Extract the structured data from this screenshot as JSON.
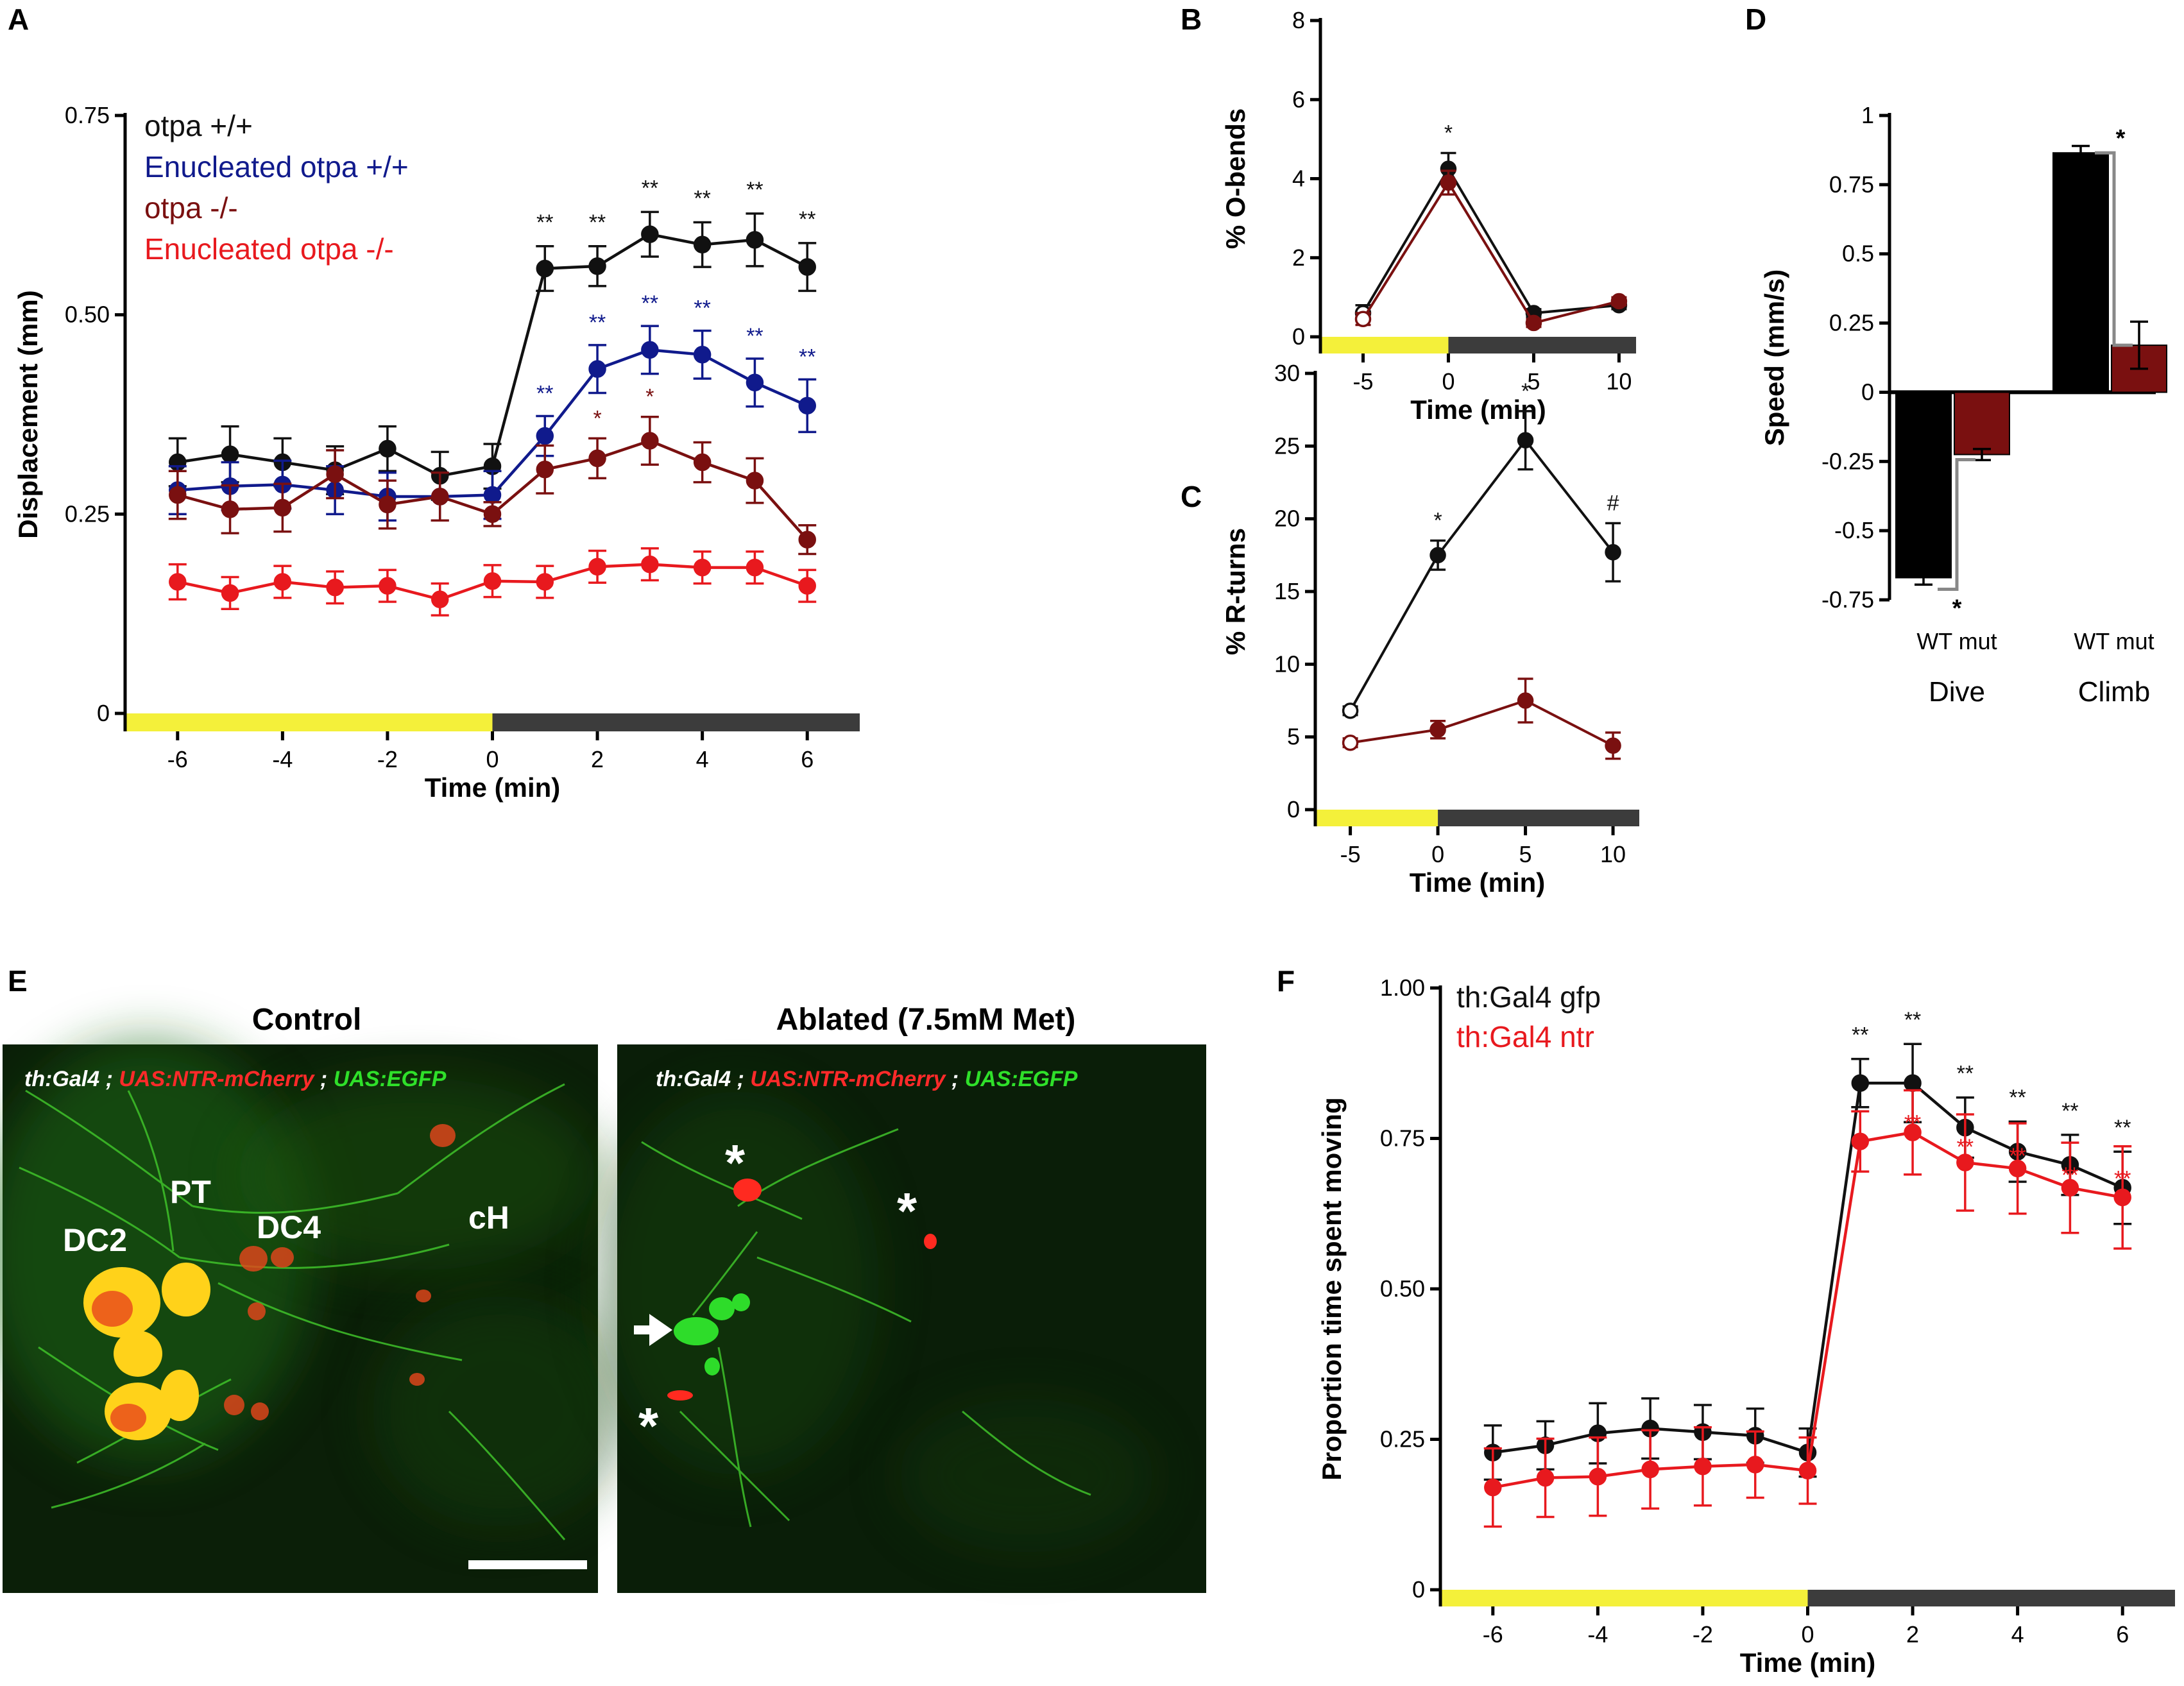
{
  "panel_letters": {
    "A": "A",
    "B": "B",
    "C": "C",
    "D": "D",
    "E": "E",
    "F": "F"
  },
  "colors": {
    "black": "#111111",
    "blue": "#101a8c",
    "darkred": "#7a1010",
    "red": "#e8191e",
    "light": "#f4f03a",
    "dark": "#3c3c3c"
  },
  "chart_data": [
    {
      "id": "A",
      "type": "line",
      "xlabel": "Time (min)",
      "ylabel": "Displacement (mm)",
      "xlim": [
        -7,
        7
      ],
      "ylim": [
        0,
        0.75
      ],
      "xticks": [
        -6,
        -4,
        -2,
        0,
        2,
        4,
        6
      ],
      "yticks": [
        0,
        0.25,
        0.5,
        0.75
      ],
      "ytick_labels": [
        "0",
        "0.25",
        "0.50",
        "0.75"
      ],
      "light_bar": {
        "light": [
          -7,
          0
        ],
        "dark": [
          0,
          7
        ]
      },
      "x": [
        -6,
        -5,
        -4,
        -3,
        -2,
        -1,
        0,
        1,
        2,
        3,
        4,
        5,
        6
      ],
      "series": [
        {
          "name": "otpa +/+",
          "color": "#111111",
          "values": [
            0.315,
            0.325,
            0.315,
            0.305,
            0.332,
            0.298,
            0.31,
            0.558,
            0.561,
            0.601,
            0.588,
            0.594,
            0.56
          ],
          "err": [
            0.03,
            0.035,
            0.03,
            0.03,
            0.028,
            0.03,
            0.028,
            0.028,
            0.025,
            0.028,
            0.028,
            0.033,
            0.03
          ],
          "sig": [
            "",
            "",
            "",
            "",
            "",
            "",
            "",
            "**",
            "**",
            "**",
            "**",
            "**",
            "**"
          ]
        },
        {
          "name": "Enucleated otpa +/+",
          "color": "#101a8c",
          "values": [
            0.28,
            0.285,
            0.287,
            0.28,
            0.272,
            0.272,
            0.274,
            0.348,
            0.432,
            0.456,
            0.45,
            0.415,
            0.386
          ],
          "err": [
            0.03,
            0.03,
            0.03,
            0.03,
            0.03,
            0.03,
            0.03,
            0.025,
            0.03,
            0.03,
            0.03,
            0.03,
            0.033
          ],
          "sig": [
            "",
            "",
            "",
            "",
            "",
            "",
            "",
            "**",
            "**",
            "**",
            "**",
            "**",
            "**"
          ]
        },
        {
          "name": "otpa -/-",
          "color": "#7a1010",
          "values": [
            0.274,
            0.256,
            0.258,
            0.3,
            0.262,
            0.272,
            0.25,
            0.306,
            0.32,
            0.342,
            0.315,
            0.292,
            0.218
          ],
          "err": [
            0.03,
            0.03,
            0.03,
            0.03,
            0.03,
            0.03,
            0.015,
            0.03,
            0.025,
            0.03,
            0.025,
            0.028,
            0.018
          ],
          "sig": [
            "",
            "",
            "",
            "",
            "",
            "",
            "",
            "",
            "*",
            "*",
            "",
            "",
            ""
          ]
        },
        {
          "name": "Enucleated otpa -/-",
          "color": "#e8191e",
          "values": [
            0.165,
            0.151,
            0.165,
            0.158,
            0.16,
            0.143,
            0.166,
            0.165,
            0.184,
            0.187,
            0.183,
            0.183,
            0.16
          ],
          "err": [
            0.022,
            0.02,
            0.02,
            0.02,
            0.02,
            0.02,
            0.02,
            0.02,
            0.02,
            0.02,
            0.02,
            0.02,
            0.02
          ],
          "sig": [
            "",
            "",
            "",
            "",
            "",
            "",
            "",
            "",
            "",
            "",
            "",
            "",
            ""
          ]
        }
      ]
    },
    {
      "id": "B",
      "type": "line",
      "xlabel": "Time (min)",
      "ylabel": "% O-bends",
      "xlim": [
        -7.5,
        11
      ],
      "ylim": [
        0,
        8
      ],
      "xticks": [
        -5,
        0,
        5,
        10
      ],
      "yticks": [
        0,
        2,
        4,
        6,
        8
      ],
      "light_bar": {
        "light": [
          -7.5,
          0
        ],
        "dark": [
          0,
          11
        ]
      },
      "x": [
        -5,
        0,
        5,
        10
      ],
      "series": [
        {
          "name": "WT",
          "color": "#111111",
          "values": [
            0.6,
            4.25,
            0.6,
            0.8
          ],
          "err": [
            0.2,
            0.4,
            0.1,
            0.1
          ],
          "open_first": true,
          "sig": [
            "",
            "*",
            "",
            ""
          ]
        },
        {
          "name": "mut",
          "color": "#7a1010",
          "values": [
            0.45,
            3.9,
            0.35,
            0.9
          ],
          "err": [
            0.15,
            0.3,
            0.1,
            0.1
          ],
          "open_first": true,
          "sig": [
            "",
            "*",
            "",
            ""
          ]
        }
      ]
    },
    {
      "id": "C",
      "type": "line",
      "xlabel": "Time (min)",
      "ylabel": "% R-turns",
      "xlim": [
        -7,
        11.5
      ],
      "ylim": [
        0,
        30
      ],
      "xticks": [
        -5,
        0,
        5,
        10
      ],
      "yticks": [
        0,
        5,
        10,
        15,
        20,
        25,
        30
      ],
      "light_bar": {
        "light": [
          -7,
          0
        ],
        "dark": [
          0,
          11.5
        ]
      },
      "x": [
        -5,
        0,
        5,
        10
      ],
      "series": [
        {
          "name": "WT",
          "color": "#111111",
          "values": [
            6.8,
            17.5,
            25.4,
            17.7
          ],
          "err": [
            0.3,
            1.0,
            2.0,
            2.0
          ],
          "open_first": true,
          "sig": [
            "",
            "*",
            "*",
            "#"
          ]
        },
        {
          "name": "mut",
          "color": "#7a1010",
          "values": [
            4.6,
            5.5,
            7.5,
            4.4
          ],
          "err": [
            0.3,
            0.6,
            1.5,
            0.9
          ],
          "open_first": true,
          "sig": [
            "",
            "",
            "",
            ""
          ]
        }
      ]
    },
    {
      "id": "D",
      "type": "bar",
      "ylabel": "Speed (mm/s)",
      "ylim": [
        -0.75,
        1
      ],
      "yticks": [
        -0.75,
        -0.5,
        -0.25,
        0,
        0.25,
        0.5,
        0.75,
        1
      ],
      "ytick_labels": [
        "-0.75",
        "-0.5",
        "-0.25",
        "0",
        "0.25",
        "0.5",
        "0.75",
        "1"
      ],
      "groups": [
        {
          "name": "Dive",
          "sublabel": "WT mut",
          "values": [
            -0.67,
            -0.225
          ],
          "err": [
            0.025,
            0.02
          ],
          "sig": "*"
        },
        {
          "name": "Climb",
          "sublabel": "WT mut",
          "values": [
            0.865,
            0.17
          ],
          "err": [
            0.025,
            0.085
          ],
          "sig": "*"
        }
      ],
      "bar_colors": [
        "#000000",
        "#7a1010"
      ]
    },
    {
      "id": "F",
      "type": "line",
      "xlabel": "Time (min)",
      "ylabel": "Proportion time spent moving",
      "xlim": [
        -7,
        7
      ],
      "ylim": [
        0,
        1.0
      ],
      "xticks": [
        -6,
        -4,
        -2,
        0,
        2,
        4,
        6
      ],
      "yticks": [
        0,
        0.25,
        0.5,
        0.75,
        1.0
      ],
      "ytick_labels": [
        "0",
        "0.25",
        "0.50",
        "0.75",
        "1.00"
      ],
      "light_bar": {
        "light": [
          -7,
          0
        ],
        "dark": [
          0,
          7
        ]
      },
      "x": [
        -6,
        -5,
        -4,
        -3,
        -2,
        -1,
        0,
        1,
        2,
        3,
        4,
        5,
        6
      ],
      "series": [
        {
          "name": "th:Gal4 gfp",
          "color": "#111111",
          "values": [
            0.228,
            0.24,
            0.26,
            0.268,
            0.262,
            0.256,
            0.228,
            0.842,
            0.842,
            0.768,
            0.728,
            0.706,
            0.668
          ],
          "err": [
            0.045,
            0.04,
            0.05,
            0.05,
            0.045,
            0.045,
            0.04,
            0.04,
            0.065,
            0.05,
            0.05,
            0.05,
            0.06
          ],
          "sig": [
            "",
            "",
            "",
            "",
            "",
            "",
            "",
            "**",
            "**",
            "**",
            "**",
            "**",
            "**"
          ]
        },
        {
          "name": "th:Gal4 ntr",
          "color": "#e8191e",
          "values": [
            0.17,
            0.186,
            0.188,
            0.2,
            0.205,
            0.208,
            0.198,
            0.745,
            0.76,
            0.71,
            0.7,
            0.668,
            0.652
          ],
          "err": [
            0.065,
            0.065,
            0.065,
            0.065,
            0.065,
            0.055,
            0.055,
            0.05,
            0.07,
            0.08,
            0.075,
            0.075,
            0.085
          ],
          "sig": [
            "",
            "",
            "",
            "",
            "",
            "",
            "",
            "**",
            "**",
            "**",
            "**",
            "**",
            "**"
          ]
        }
      ]
    }
  ],
  "imaging": {
    "control_title": "Control",
    "ablated_title": "Ablated (7.5mM Met)",
    "genotype": {
      "part1": "th:Gal4",
      "sep": " ; ",
      "part2": "UAS:NTR-mCherry",
      "part3": "UAS:EGFP"
    },
    "regions": {
      "dc2": "DC2",
      "pt": "PT",
      "dc4": "DC4",
      "ch": "cH"
    },
    "asterisk": "*"
  }
}
